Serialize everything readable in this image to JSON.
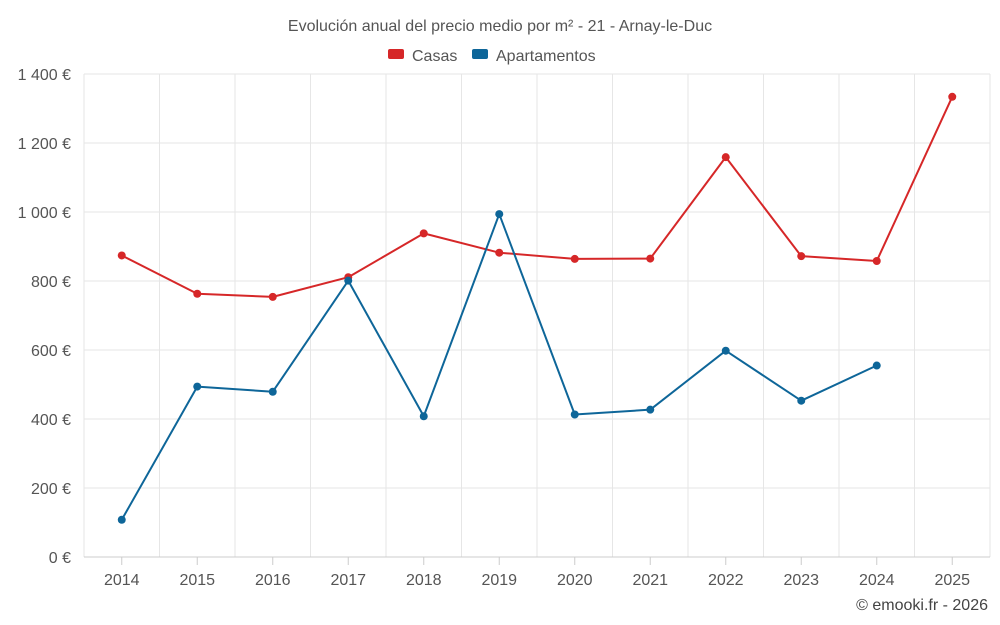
{
  "chart_data": {
    "type": "line",
    "title": "Evolución anual del precio medio por m² - 21 - Arnay-le-Duc",
    "categories": [
      "2014",
      "2015",
      "2016",
      "2017",
      "2018",
      "2019",
      "2020",
      "2021",
      "2022",
      "2023",
      "2024",
      "2025"
    ],
    "series": [
      {
        "name": "Casas",
        "color": "#d62728",
        "values": [
          874,
          763,
          754,
          811,
          938,
          882,
          864,
          865,
          1159,
          872,
          858,
          1334
        ]
      },
      {
        "name": "Apartamentos",
        "color": "#0e6699",
        "values": [
          108,
          494,
          479,
          801,
          408,
          994,
          413,
          427,
          598,
          453,
          555,
          null
        ]
      }
    ],
    "ylim": [
      0,
      1400
    ],
    "yticks": [
      0,
      200,
      400,
      600,
      800,
      1000,
      1200,
      1400
    ],
    "ytick_labels": [
      "0 €",
      "200 €",
      "400 €",
      "600 €",
      "800 €",
      "1 000 €",
      "1 200 €",
      "1 400 €"
    ],
    "xlabel": "",
    "ylabel": "",
    "legend_position": "top-center",
    "grid": true
  },
  "credit": "© emooki.fr - 2026"
}
